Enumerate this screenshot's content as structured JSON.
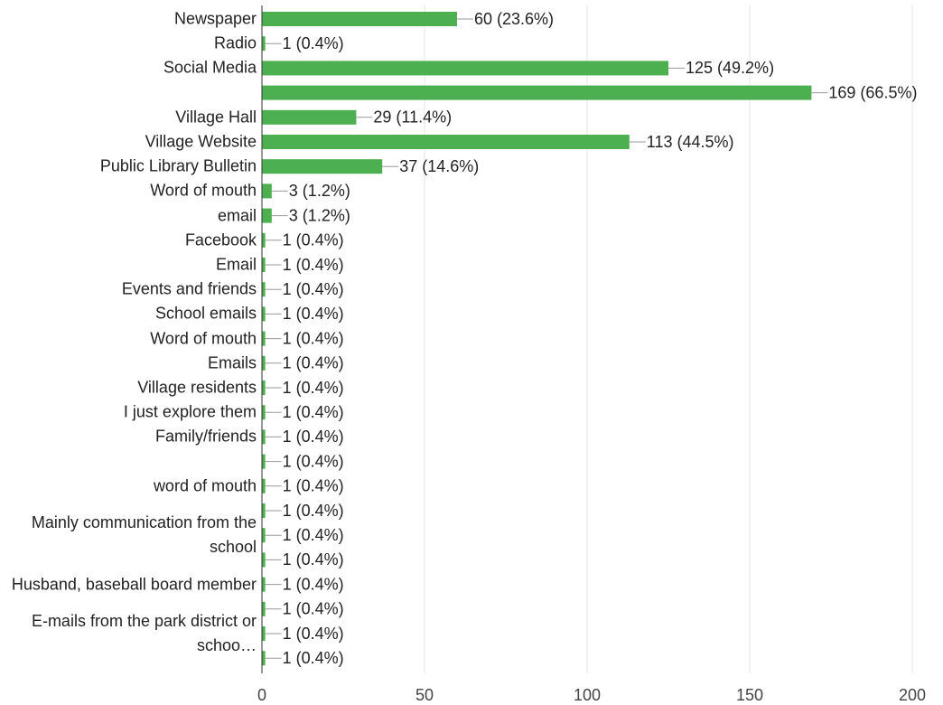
{
  "chart_data": {
    "type": "barh",
    "color": "#4caf50",
    "grid": true,
    "xlim": [
      0,
      200
    ],
    "xticks": [
      0,
      50,
      100,
      150,
      200
    ],
    "categories": [
      "Newspaper",
      "Radio",
      "Social Media",
      null,
      "Village Hall",
      "Village Website",
      "Public Library Bulletin",
      "Word of mouth",
      "email",
      "Facebook",
      "Email",
      "Events and friends",
      "School emails",
      "Word of mouth",
      "Emails",
      "Village residents",
      "I just explore them",
      "Family/friends",
      null,
      "word of mouth",
      null,
      "Mainly communication from the school",
      null,
      "Husband, baseball board member",
      null,
      "E-mails from the park district or schoo…",
      null
    ],
    "values": [
      60,
      1,
      125,
      169,
      29,
      113,
      37,
      3,
      3,
      1,
      1,
      1,
      1,
      1,
      1,
      1,
      1,
      1,
      1,
      1,
      1,
      1,
      1,
      1,
      1,
      1,
      1
    ],
    "value_labels": [
      "60 (23.6%)",
      "1 (0.4%)",
      "125 (49.2%)",
      "169 (66.5%)",
      "29 (11.4%)",
      "113 (44.5%)",
      "37 (14.6%)",
      "3 (1.2%)",
      "3 (1.2%)",
      "1 (0.4%)",
      "1 (0.4%)",
      "1 (0.4%)",
      "1 (0.4%)",
      "1 (0.4%)",
      "1 (0.4%)",
      "1 (0.4%)",
      "1 (0.4%)",
      "1 (0.4%)",
      "1 (0.4%)",
      "1 (0.4%)",
      "1 (0.4%)",
      "1 (0.4%)",
      "1 (0.4%)",
      "1 (0.4%)",
      "1 (0.4%)",
      "1 (0.4%)",
      "1 (0.4%)"
    ]
  }
}
